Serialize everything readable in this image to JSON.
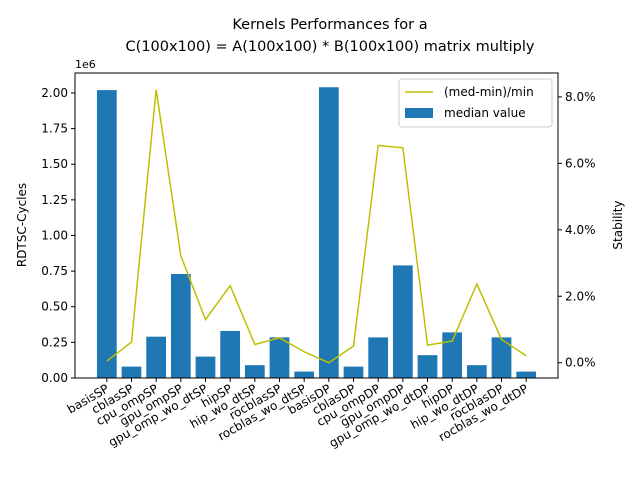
{
  "chart_data": {
    "type": "bar",
    "title_line1": "Kernels Performances for a",
    "title_line2": "C(100x100) = A(100x100) * B(100x100) matrix multiply",
    "ylabel": "RDTSC-Cycles",
    "y2label": "Stability",
    "y_multiplier": "1e6",
    "ylim": [
      0,
      2.14
    ],
    "y2lim": [
      -0.0046,
      0.0872
    ],
    "yticks": [
      "0.00",
      "0.25",
      "0.50",
      "0.75",
      "1.00",
      "1.25",
      "1.50",
      "1.75",
      "2.00"
    ],
    "y2ticks": [
      "0.0%",
      "2.0%",
      "4.0%",
      "6.0%",
      "8.0%"
    ],
    "categories": [
      "basisSP",
      "cblasSP",
      "cpu_ompSP",
      "gpu_ompSP",
      "gpu_omp_wo_dtSP",
      "hipSP",
      "hip_wo_dtSP",
      "rocblasSP",
      "rocblas_wo_dtSP",
      "basisDP",
      "cblasDP",
      "cpu_ompDP",
      "gpu_ompDP",
      "gpu_omp_wo_dtDP",
      "hipDP",
      "hip_wo_dtDP",
      "rocblasDP",
      "rocblas_wo_dtDP"
    ],
    "series": [
      {
        "name": "median value",
        "axis": "left",
        "color": "#1f77b4",
        "values": [
          2.02,
          0.08,
          0.29,
          0.73,
          0.15,
          0.33,
          0.09,
          0.285,
          0.045,
          2.04,
          0.08,
          0.285,
          0.79,
          0.16,
          0.32,
          0.09,
          0.285,
          0.045
        ]
      },
      {
        "name": "(med-min)/min",
        "axis": "right",
        "color": "#bfbf00",
        "values": [
          0.0005,
          0.0062,
          0.0822,
          0.0322,
          0.013,
          0.0232,
          0.0055,
          0.0075,
          0.0033,
          0.0,
          0.005,
          0.0654,
          0.0647,
          0.0053,
          0.0065,
          0.0237,
          0.007,
          0.0021
        ]
      }
    ],
    "legend_position": "top-right",
    "grid": false
  }
}
